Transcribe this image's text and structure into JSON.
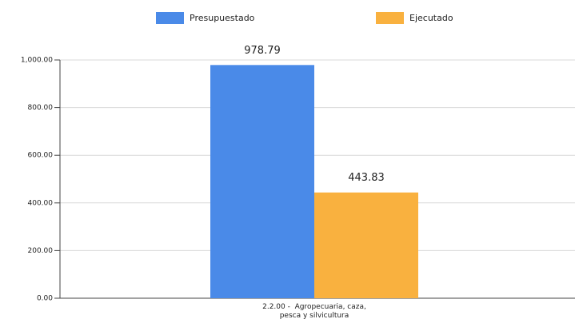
{
  "chart_data": {
    "type": "bar",
    "categories": [
      "2.2.00 -  Agropecuaria, caza, pesca y silvicultura"
    ],
    "series": [
      {
        "name": "Presupuestado",
        "color": "#4a8ae8",
        "values": [
          978.79
        ]
      },
      {
        "name": "Ejecutado",
        "color": "#f9b13f",
        "values": [
          443.83
        ]
      }
    ],
    "ylim": [
      0,
      1000
    ],
    "yticks": [
      {
        "value": 0,
        "label": "0.00"
      },
      {
        "value": 200,
        "label": "200.00"
      },
      {
        "value": 400,
        "label": "400.00"
      },
      {
        "value": 600,
        "label": "600.00"
      },
      {
        "value": 800,
        "label": "800.00"
      },
      {
        "value": 1000,
        "label": "1,000.00"
      }
    ],
    "grid": true,
    "legend": "top"
  }
}
